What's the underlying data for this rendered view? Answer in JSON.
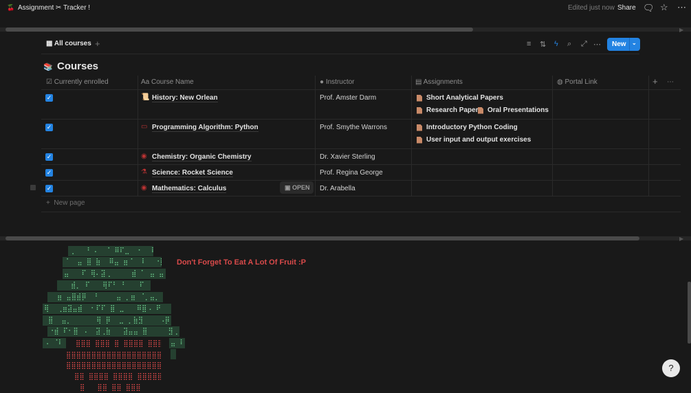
{
  "topbar": {
    "title": "Assignment ✂ Tracker !",
    "edited": "Edited just now",
    "share": "Share",
    "icons": [
      "comment-icon",
      "star-icon",
      "more-icon"
    ]
  },
  "view": {
    "tab": "All courses",
    "new_label": "New"
  },
  "database": {
    "title": "Courses",
    "columns": [
      "Currently enrolled",
      "Course Name",
      "Instructor",
      "Assignments",
      "Portal Link"
    ],
    "rows": [
      {
        "enrolled": true,
        "name": "History: New Orlean",
        "instructor": "Prof. Amster Darm",
        "assignments": [
          "Short Analytical Papers",
          "Research Paper",
          "Oral Presentations"
        ]
      },
      {
        "enrolled": true,
        "name": "Programming Algorithm: Python",
        "instructor": "Prof. Smythe Warrons",
        "assignments": [
          "Introductory Python Coding",
          "User input and output exercises"
        ]
      },
      {
        "enrolled": true,
        "name": "Chemistry: Organic Chemistry",
        "instructor": "Dr. Xavier Sterling",
        "assignments": []
      },
      {
        "enrolled": true,
        "name": "Science: Rocket Science",
        "instructor": "Prof. Regina George",
        "assignments": []
      },
      {
        "enrolled": true,
        "name": "Mathematics: Calculus",
        "instructor": "Dr. Arabella",
        "assignments": [],
        "open_label": "OPEN"
      }
    ],
    "new_page": "New page"
  },
  "note": {
    "text": "Don't Forget To Eat A Lot Of Fruit :P"
  },
  "colors": {
    "accent": "#2383e2",
    "note": "#d94a4a",
    "art_green": "#6fcf8f",
    "art_red": "#e04a4a"
  }
}
